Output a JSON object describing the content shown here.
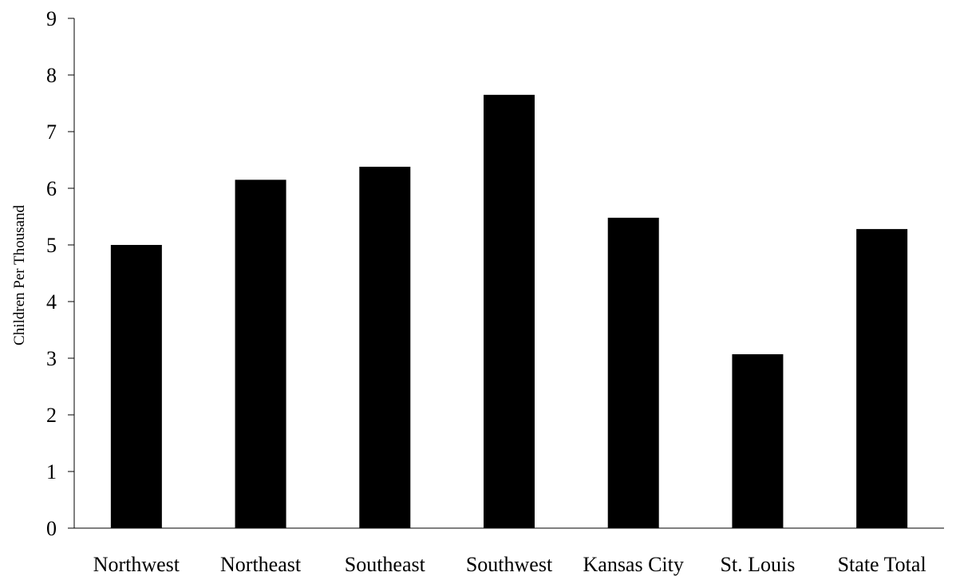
{
  "chart_data": {
    "type": "bar",
    "title": "",
    "xlabel": "",
    "ylabel": "Children Per Thousand",
    "categories": [
      "Northwest",
      "Northeast",
      "Southeast",
      "Southwest",
      "Kansas City",
      "St. Louis",
      "State Total"
    ],
    "values": [
      5.0,
      6.15,
      6.38,
      7.65,
      5.48,
      3.07,
      5.28
    ],
    "ylim": [
      0,
      9
    ],
    "yticks": [
      0,
      1,
      2,
      3,
      4,
      5,
      6,
      7,
      8,
      9
    ],
    "grid": false,
    "legend": "none",
    "bar_color": "#000000",
    "axis_color": "#000000"
  }
}
